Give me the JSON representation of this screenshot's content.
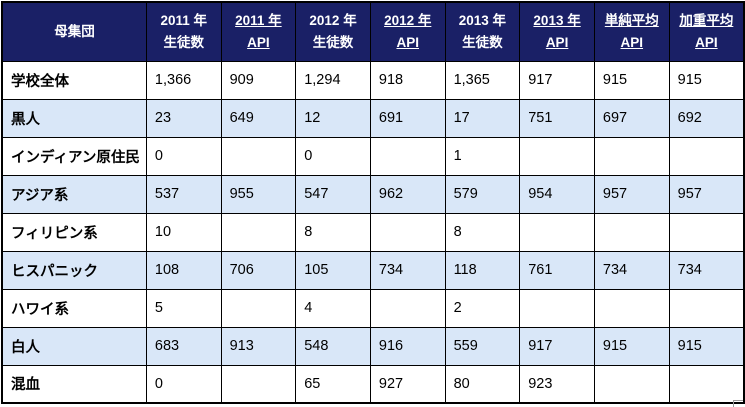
{
  "colors": {
    "header_bg": "#1A2066",
    "header_text": "#FFFFFF",
    "stripe_bg": "#D9E7F8",
    "border": "#000000",
    "corner_mark": "#999999"
  },
  "table": {
    "columns": [
      {
        "line1": "母集団",
        "line2": "",
        "underline": false
      },
      {
        "line1": "2011 年",
        "line2": "生徒数",
        "underline": false
      },
      {
        "line1": "2011 年",
        "line2": "API",
        "underline": true
      },
      {
        "line1": "2012 年",
        "line2": "生徒数",
        "underline": false
      },
      {
        "line1": "2012 年",
        "line2": "API",
        "underline": true
      },
      {
        "line1": "2013 年",
        "line2": "生徒数",
        "underline": false
      },
      {
        "line1": "2013 年",
        "line2": "API",
        "underline": true
      },
      {
        "line1": "単純平均",
        "line2": "API",
        "underline": true
      },
      {
        "line1": "加重平均",
        "line2": "API",
        "underline": true
      }
    ],
    "rows": [
      {
        "label": "学校全体",
        "values": [
          "1,366",
          "909",
          "1,294",
          "918",
          "1,365",
          "917",
          "915",
          "915"
        ],
        "striped": false
      },
      {
        "label": "黒人",
        "values": [
          "23",
          "649",
          "12",
          "691",
          "17",
          "751",
          "697",
          "692"
        ],
        "striped": true
      },
      {
        "label": "インディアン原住民",
        "values": [
          "0",
          "",
          "0",
          "",
          "1",
          "",
          "",
          ""
        ],
        "striped": false
      },
      {
        "label": "アジア系",
        "values": [
          "537",
          "955",
          "547",
          "962",
          "579",
          "954",
          "957",
          "957"
        ],
        "striped": true
      },
      {
        "label": "フィリピン系",
        "values": [
          "10",
          "",
          "8",
          "",
          "8",
          "",
          "",
          ""
        ],
        "striped": false
      },
      {
        "label": "ヒスパニック",
        "values": [
          "108",
          "706",
          "105",
          "734",
          "118",
          "761",
          "734",
          "734"
        ],
        "striped": true
      },
      {
        "label": "ハワイ系",
        "values": [
          "5",
          "",
          "4",
          "",
          "2",
          "",
          "",
          ""
        ],
        "striped": false
      },
      {
        "label": "白人",
        "values": [
          "683",
          "913",
          "548",
          "916",
          "559",
          "917",
          "915",
          "915"
        ],
        "striped": true
      },
      {
        "label": "混血",
        "values": [
          "0",
          "",
          "65",
          "927",
          "80",
          "923",
          "",
          ""
        ],
        "striped": false
      }
    ]
  }
}
